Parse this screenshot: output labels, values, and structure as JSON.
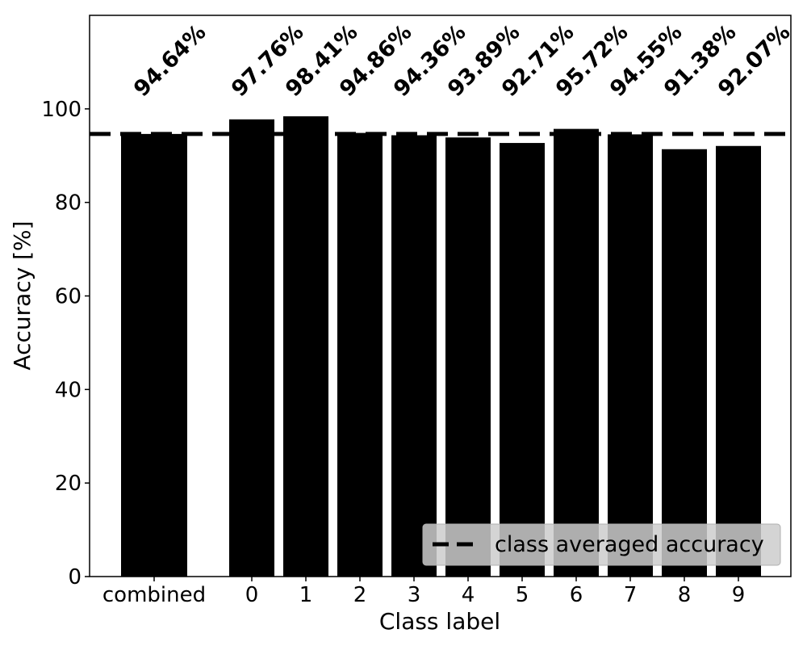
{
  "chart_data": {
    "type": "bar",
    "categories": [
      "combined",
      "0",
      "1",
      "2",
      "3",
      "4",
      "5",
      "6",
      "7",
      "8",
      "9"
    ],
    "values": [
      94.64,
      97.76,
      98.41,
      94.86,
      94.36,
      93.89,
      92.71,
      95.72,
      94.55,
      91.38,
      92.07
    ],
    "value_labels": [
      "94.64%",
      "97.76%",
      "98.41%",
      "94.86%",
      "94.36%",
      "93.89%",
      "92.71%",
      "95.72%",
      "94.55%",
      "91.38%",
      "92.07%"
    ],
    "xlabel": "Class label",
    "ylabel": "Accuracy [%]",
    "ylim": [
      0,
      120
    ],
    "yticks": [
      0,
      20,
      40,
      60,
      80,
      100
    ],
    "ytick_labels": [
      "0",
      "20",
      "40",
      "60",
      "80",
      "100"
    ],
    "reference_line": {
      "value": 94.64,
      "style": "dashed",
      "label": "class averaged accuracy"
    },
    "legend": {
      "entries": [
        "class averaged accuracy"
      ],
      "placement": "lower-right"
    },
    "grid": false,
    "colors": {
      "bars": "#000000",
      "line": "#000000",
      "legend_background": "#cccccc"
    }
  }
}
